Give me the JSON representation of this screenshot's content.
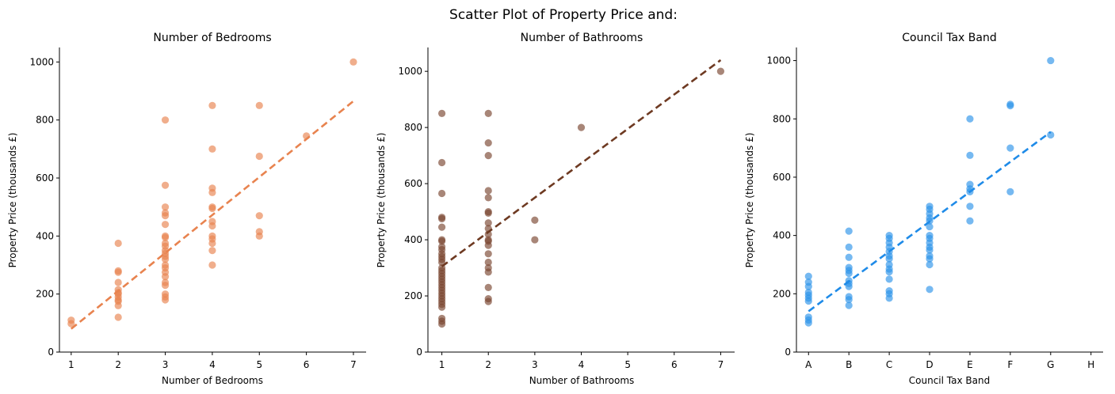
{
  "suptitle": "Scatter Plot of Property Price and:",
  "chart_data": [
    {
      "type": "scatter",
      "title": "Number of Bedrooms",
      "xlabel": "Number of Bedrooms",
      "ylabel": "Property Price (thousands £)",
      "xlim": [
        0.75,
        7.27
      ],
      "ylim": [
        0,
        1050
      ],
      "xticks": [
        1,
        2,
        3,
        4,
        5,
        6,
        7
      ],
      "xticklabels": [
        "1",
        "2",
        "3",
        "4",
        "5",
        "6",
        "7"
      ],
      "yticks": [
        0,
        200,
        400,
        600,
        800,
        1000
      ],
      "point_color": "#e8834f",
      "line_color": "#e8834f",
      "trend": {
        "x": [
          1,
          7
        ],
        "y": [
          80,
          865
        ]
      },
      "points": [
        [
          1,
          110
        ],
        [
          1,
          98
        ],
        [
          2,
          375
        ],
        [
          2,
          280
        ],
        [
          2,
          275
        ],
        [
          2,
          240
        ],
        [
          2,
          215
        ],
        [
          2,
          205
        ],
        [
          2,
          200
        ],
        [
          2,
          190
        ],
        [
          2,
          180
        ],
        [
          2,
          175
        ],
        [
          2,
          160
        ],
        [
          2,
          120
        ],
        [
          3,
          800
        ],
        [
          3,
          575
        ],
        [
          3,
          500
        ],
        [
          3,
          480
        ],
        [
          3,
          470
        ],
        [
          3,
          440
        ],
        [
          3,
          400
        ],
        [
          3,
          395
        ],
        [
          3,
          375
        ],
        [
          3,
          365
        ],
        [
          3,
          350
        ],
        [
          3,
          340
        ],
        [
          3,
          330
        ],
        [
          3,
          320
        ],
        [
          3,
          300
        ],
        [
          3,
          290
        ],
        [
          3,
          275
        ],
        [
          3,
          260
        ],
        [
          3,
          240
        ],
        [
          3,
          230
        ],
        [
          3,
          200
        ],
        [
          3,
          190
        ],
        [
          3,
          180
        ],
        [
          4,
          850
        ],
        [
          4,
          700
        ],
        [
          4,
          565
        ],
        [
          4,
          550
        ],
        [
          4,
          500
        ],
        [
          4,
          495
        ],
        [
          4,
          450
        ],
        [
          4,
          435
        ],
        [
          4,
          400
        ],
        [
          4,
          390
        ],
        [
          4,
          375
        ],
        [
          4,
          350
        ],
        [
          4,
          300
        ],
        [
          5,
          850
        ],
        [
          5,
          675
        ],
        [
          5,
          470
        ],
        [
          5,
          415
        ],
        [
          5,
          400
        ],
        [
          6,
          745
        ],
        [
          7,
          1000
        ]
      ]
    },
    {
      "type": "scatter",
      "title": "Number of Bathrooms",
      "xlabel": "Number of Bathrooms",
      "ylabel": "Property Price (thousands £)",
      "xlim": [
        0.7,
        7.3
      ],
      "ylim": [
        0,
        1085
      ],
      "xticks": [
        1,
        2,
        3,
        4,
        5,
        6,
        7
      ],
      "xticklabels": [
        "1",
        "2",
        "3",
        "4",
        "5",
        "6",
        "7"
      ],
      "yticks": [
        0,
        200,
        400,
        600,
        800,
        1000
      ],
      "point_color": "#7a4530",
      "line_color": "#6e3a22",
      "trend": {
        "x": [
          1,
          7
        ],
        "y": [
          305,
          1040
        ]
      },
      "points": [
        [
          1,
          850
        ],
        [
          1,
          675
        ],
        [
          1,
          565
        ],
        [
          1,
          480
        ],
        [
          1,
          475
        ],
        [
          1,
          445
        ],
        [
          1,
          400
        ],
        [
          1,
          395
        ],
        [
          1,
          375
        ],
        [
          1,
          365
        ],
        [
          1,
          350
        ],
        [
          1,
          340
        ],
        [
          1,
          330
        ],
        [
          1,
          320
        ],
        [
          1,
          300
        ],
        [
          1,
          290
        ],
        [
          1,
          280
        ],
        [
          1,
          270
        ],
        [
          1,
          260
        ],
        [
          1,
          250
        ],
        [
          1,
          240
        ],
        [
          1,
          230
        ],
        [
          1,
          220
        ],
        [
          1,
          210
        ],
        [
          1,
          200
        ],
        [
          1,
          190
        ],
        [
          1,
          180
        ],
        [
          1,
          170
        ],
        [
          1,
          160
        ],
        [
          1,
          120
        ],
        [
          1,
          110
        ],
        [
          1,
          100
        ],
        [
          2,
          850
        ],
        [
          2,
          745
        ],
        [
          2,
          700
        ],
        [
          2,
          575
        ],
        [
          2,
          550
        ],
        [
          2,
          500
        ],
        [
          2,
          495
        ],
        [
          2,
          460
        ],
        [
          2,
          440
        ],
        [
          2,
          420
        ],
        [
          2,
          400
        ],
        [
          2,
          395
        ],
        [
          2,
          380
        ],
        [
          2,
          350
        ],
        [
          2,
          320
        ],
        [
          2,
          300
        ],
        [
          2,
          285
        ],
        [
          2,
          230
        ],
        [
          2,
          190
        ],
        [
          2,
          180
        ],
        [
          3,
          470
        ],
        [
          3,
          400
        ],
        [
          4,
          800
        ],
        [
          7,
          1000
        ]
      ]
    },
    {
      "type": "scatter",
      "title": "Council Tax Band",
      "xlabel": "Council Tax Band",
      "ylabel": "Property Price (thousands £)",
      "xlim": [
        -0.3,
        7.3
      ],
      "ylim": [
        0,
        1045
      ],
      "xticks": [
        0,
        1,
        2,
        3,
        4,
        5,
        6,
        7
      ],
      "xticklabels": [
        "A",
        "B",
        "C",
        "D",
        "E",
        "F",
        "G",
        "H"
      ],
      "yticks": [
        0,
        200,
        400,
        600,
        800,
        1000
      ],
      "point_color": "#2d94ea",
      "line_color": "#1f8be8",
      "trend": {
        "x": [
          0,
          6
        ],
        "y": [
          140,
          755
        ]
      },
      "points": [
        [
          0,
          260
        ],
        [
          0,
          240
        ],
        [
          0,
          225
        ],
        [
          0,
          205
        ],
        [
          0,
          195
        ],
        [
          0,
          185
        ],
        [
          0,
          175
        ],
        [
          0,
          120
        ],
        [
          0,
          110
        ],
        [
          0,
          100
        ],
        [
          1,
          415
        ],
        [
          1,
          360
        ],
        [
          1,
          325
        ],
        [
          1,
          290
        ],
        [
          1,
          280
        ],
        [
          1,
          270
        ],
        [
          1,
          245
        ],
        [
          1,
          235
        ],
        [
          1,
          225
        ],
        [
          1,
          190
        ],
        [
          1,
          180
        ],
        [
          1,
          160
        ],
        [
          2,
          400
        ],
        [
          2,
          390
        ],
        [
          2,
          375
        ],
        [
          2,
          360
        ],
        [
          2,
          345
        ],
        [
          2,
          330
        ],
        [
          2,
          320
        ],
        [
          2,
          300
        ],
        [
          2,
          285
        ],
        [
          2,
          275
        ],
        [
          2,
          250
        ],
        [
          2,
          210
        ],
        [
          2,
          200
        ],
        [
          2,
          185
        ],
        [
          3,
          500
        ],
        [
          3,
          490
        ],
        [
          3,
          475
        ],
        [
          3,
          460
        ],
        [
          3,
          450
        ],
        [
          3,
          430
        ],
        [
          3,
          400
        ],
        [
          3,
          390
        ],
        [
          3,
          375
        ],
        [
          3,
          360
        ],
        [
          3,
          350
        ],
        [
          3,
          330
        ],
        [
          3,
          320
        ],
        [
          3,
          300
        ],
        [
          3,
          215
        ],
        [
          4,
          800
        ],
        [
          4,
          675
        ],
        [
          4,
          575
        ],
        [
          4,
          560
        ],
        [
          4,
          550
        ],
        [
          4,
          500
        ],
        [
          4,
          450
        ],
        [
          5,
          850
        ],
        [
          5,
          845
        ],
        [
          5,
          700
        ],
        [
          5,
          550
        ],
        [
          6,
          1000
        ],
        [
          6,
          745
        ]
      ]
    }
  ]
}
